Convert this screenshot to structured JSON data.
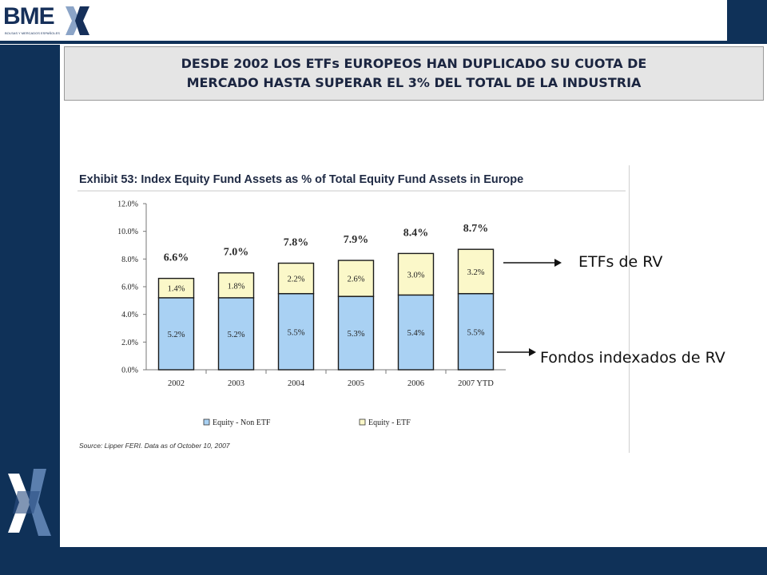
{
  "logo": {
    "main": "BME",
    "sub": "BOLSAS Y MERCADOS ESPAÑOLES"
  },
  "slide_title": {
    "line1": "DESDE 2002 LOS ETFs EUROPEOS HAN DUPLICADO SU CUOTA DE",
    "line2": "MERCADO HASTA SUPERAR EL 3% DEL TOTAL DE LA INDUSTRIA"
  },
  "annotations": {
    "etf": "ETFs de RV",
    "index": "Fondos indexados de RV"
  },
  "colors": {
    "brand_navy": "#0f3158",
    "series_non_etf": "#a9d1f3",
    "series_etf": "#fbf8c9",
    "logo_x_light": "#8ba4c7",
    "logo_x_dark": "#16305a"
  },
  "chart_data": {
    "type": "bar",
    "stacked": true,
    "title": "Exhibit 53: Index Equity Fund Assets as % of Total Equity Fund Assets in Europe",
    "categories": [
      "2002",
      "2003",
      "2004",
      "2005",
      "2006",
      "2007 YTD"
    ],
    "series": [
      {
        "name": "Equity - Non ETF",
        "values": [
          5.2,
          5.2,
          5.5,
          5.3,
          5.4,
          5.5
        ],
        "labels": [
          "5.2%",
          "5.2%",
          "5.5%",
          "5.3%",
          "5.4%",
          "5.5%"
        ]
      },
      {
        "name": "Equity - ETF",
        "values": [
          1.4,
          1.8,
          2.2,
          2.6,
          3.0,
          3.2
        ],
        "labels": [
          "1.4%",
          "1.8%",
          "2.2%",
          "2.6%",
          "3.0%",
          "3.2%"
        ]
      }
    ],
    "totals": [
      6.6,
      7.0,
      7.8,
      7.9,
      8.4,
      8.7
    ],
    "total_labels": [
      "6.6%",
      "7.0%",
      "7.8%",
      "7.9%",
      "8.4%",
      "8.7%"
    ],
    "yticks": [
      "0.0%",
      "2.0%",
      "4.0%",
      "6.0%",
      "8.0%",
      "10.0%",
      "12.0%"
    ],
    "ylim": [
      0,
      12
    ],
    "grid": false,
    "legend_position": "bottom",
    "source": "Source: Lipper FERI.  Data as of October 10, 2007"
  }
}
